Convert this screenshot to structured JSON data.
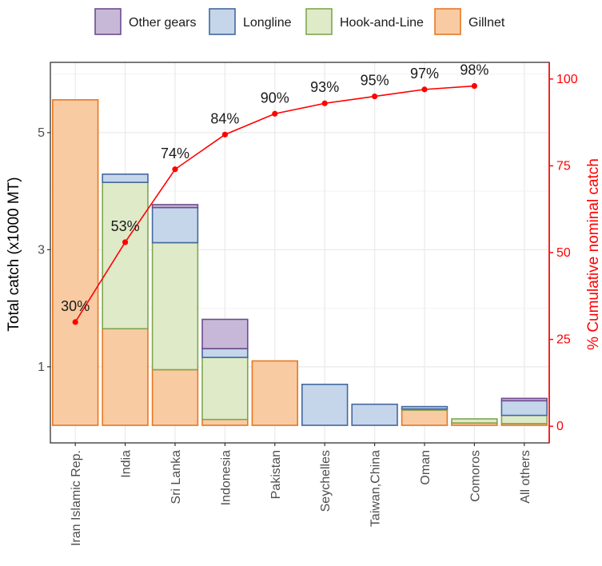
{
  "chart_data": {
    "type": "bar",
    "subtype": "stacked bar with cumulative line (pareto)",
    "categories": [
      "Iran Islamic Rep.",
      "India",
      "Sri Lanka",
      "Indonesia",
      "Pakistan",
      "Seychelles",
      "Taiwan,China",
      "Oman",
      "Comoros",
      "All others"
    ],
    "series": [
      {
        "name": "Gillnet",
        "color": "#F9CBA3",
        "stroke": "#E87722",
        "values": [
          5.56,
          1.65,
          0.95,
          0.1,
          1.1,
          0.0,
          0.0,
          0.26,
          0.04,
          0.03
        ]
      },
      {
        "name": "Hook-and-Line",
        "color": "#DFEAC8",
        "stroke": "#7FA650",
        "values": [
          0.0,
          2.5,
          2.17,
          1.06,
          0.0,
          0.0,
          0.0,
          0.02,
          0.07,
          0.14
        ]
      },
      {
        "name": "Longline",
        "color": "#C5D6EA",
        "stroke": "#44679E",
        "values": [
          0.0,
          0.14,
          0.6,
          0.15,
          0.0,
          0.7,
          0.36,
          0.04,
          0.0,
          0.25
        ]
      },
      {
        "name": "Other gears",
        "color": "#C8B8D8",
        "stroke": "#6D4C8E",
        "values": [
          0.0,
          0.0,
          0.05,
          0.5,
          0.0,
          0.0,
          0.0,
          0.0,
          0.0,
          0.04
        ]
      }
    ],
    "cumulative": {
      "values": [
        30,
        53,
        74,
        84,
        90,
        93,
        95,
        97,
        98
      ],
      "labels": [
        "30%",
        "53%",
        "74%",
        "84%",
        "90%",
        "93%",
        "95%",
        "97%",
        "98%"
      ],
      "color": "#FF0000"
    },
    "ylabel": "Total catch (x1000 MT)",
    "y2label": "% Cumulative nominal catch",
    "yticks": [
      1,
      3,
      5
    ],
    "y2ticks": [
      0,
      25,
      50,
      75,
      100
    ],
    "y2tick_labels": [
      "0",
      "25",
      "50",
      "75",
      "100"
    ],
    "ylim": [
      -0.3,
      6.2
    ],
    "y2lim": [
      -4.8,
      104.8
    ],
    "legend_order": [
      "Other gears",
      "Longline",
      "Hook-and-Line",
      "Gillnet"
    ],
    "legend_position": "top",
    "grid": true
  }
}
